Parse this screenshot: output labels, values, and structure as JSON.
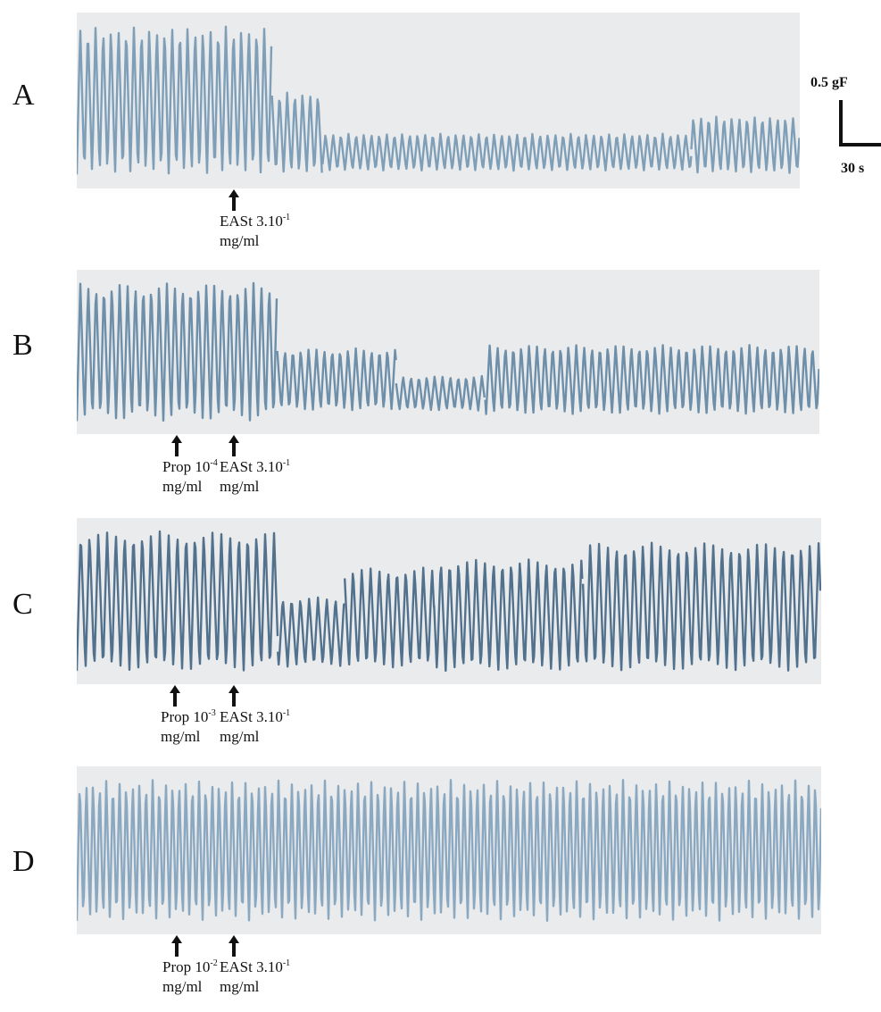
{
  "colors": {
    "background": "#ffffff",
    "paper": "#eaebed",
    "trace_light": "#7e9fb7",
    "trace_dark": "#52718c",
    "text": "#111111"
  },
  "scale_bar": {
    "force_label": "0.5 gF",
    "time_label": "30 s"
  },
  "chart_data": [
    {
      "type": "line",
      "panel": "A",
      "title": "",
      "xlabel": "",
      "ylabel": "",
      "trace_color": "#7e9fb7",
      "description_units": "relative contraction amplitude (fraction of pre-drug amplitude), per ~30 s segment",
      "markers": [
        {
          "pos": 0.22,
          "text": "EASt 3.10",
          "sup": "-1",
          "unit": "mg/ml"
        }
      ],
      "segments": [
        {
          "start": 0.0,
          "end": 0.27,
          "amp": 1.0,
          "mid": 0.5,
          "period": 0.0106
        },
        {
          "start": 0.27,
          "end": 0.34,
          "amp": 0.55,
          "mid": 0.72,
          "period": 0.0106
        },
        {
          "start": 0.34,
          "end": 0.85,
          "amp": 0.25,
          "mid": 0.85,
          "period": 0.0106
        },
        {
          "start": 0.85,
          "end": 1.0,
          "amp": 0.38,
          "mid": 0.8,
          "period": 0.0106
        }
      ]
    },
    {
      "type": "line",
      "panel": "B",
      "title": "",
      "xlabel": "",
      "ylabel": "",
      "trace_color": "#6d8fa9",
      "description_units": "relative contraction amplitude (fraction of pre-drug amplitude), per ~30 s segment",
      "markers": [
        {
          "pos": 0.14,
          "text": "Prop 10",
          "sup": "-4",
          "unit": "mg/ml"
        },
        {
          "pos": 0.22,
          "text": "EASt 3.10",
          "sup": "-1",
          "unit": "mg/ml"
        }
      ],
      "segments": [
        {
          "start": 0.0,
          "end": 0.27,
          "amp": 1.0,
          "mid": 0.5,
          "period": 0.0106
        },
        {
          "start": 0.27,
          "end": 0.43,
          "amp": 0.45,
          "mid": 0.7,
          "period": 0.0106
        },
        {
          "start": 0.43,
          "end": 0.55,
          "amp": 0.25,
          "mid": 0.8,
          "period": 0.0106
        },
        {
          "start": 0.55,
          "end": 1.0,
          "amp": 0.5,
          "mid": 0.7,
          "period": 0.0106
        }
      ]
    },
    {
      "type": "line",
      "panel": "C",
      "title": "",
      "xlabel": "",
      "ylabel": "",
      "trace_color": "#52718c",
      "description_units": "relative contraction amplitude (fraction of pre-drug amplitude), per ~30 s segment",
      "markers": [
        {
          "pos": 0.13,
          "text": "Prop 10",
          "sup": "-3",
          "unit": "mg/ml"
        },
        {
          "pos": 0.21,
          "text": "EASt 3.10",
          "sup": "-1",
          "unit": "mg/ml"
        }
      ],
      "segments": [
        {
          "start": 0.0,
          "end": 0.27,
          "amp": 1.0,
          "mid": 0.5,
          "period": 0.0118
        },
        {
          "start": 0.27,
          "end": 0.36,
          "amp": 0.5,
          "mid": 0.72,
          "period": 0.0118
        },
        {
          "start": 0.36,
          "end": 0.48,
          "amp": 0.72,
          "mid": 0.62,
          "period": 0.0118
        },
        {
          "start": 0.48,
          "end": 0.68,
          "amp": 0.8,
          "mid": 0.6,
          "period": 0.0118
        },
        {
          "start": 0.68,
          "end": 1.0,
          "amp": 0.92,
          "mid": 0.54,
          "period": 0.0118
        }
      ]
    },
    {
      "type": "line",
      "panel": "D",
      "title": "",
      "xlabel": "",
      "ylabel": "",
      "trace_color": "#8aa8c0",
      "description_units": "relative contraction amplitude (fraction of pre-drug amplitude), per ~30 s segment",
      "markers": [
        {
          "pos": 0.13,
          "text": "Prop 10",
          "sup": "-2",
          "unit": "mg/ml"
        },
        {
          "pos": 0.21,
          "text": "EASt 3.10",
          "sup": "-1",
          "unit": "mg/ml"
        }
      ],
      "segments": [
        {
          "start": 0.0,
          "end": 1.0,
          "amp": 1.0,
          "mid": 0.5,
          "period": 0.0089
        }
      ]
    }
  ]
}
